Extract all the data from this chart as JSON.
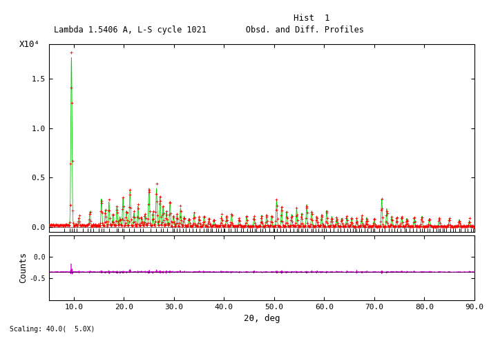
{
  "title_line1": "Hist  1",
  "title_line2": "Lambda 1.5406 A, L-S cycle 1021        Obsd. and Diff. Profiles",
  "xlabel": "2θ, deg",
  "ylabel": "Counts",
  "x_min": 5.0,
  "x_max": 90.0,
  "y_main_min": -0.05,
  "y_main_max": 1.85,
  "y_diff_min": -1.0,
  "y_diff_max": 0.5,
  "scale_label": "Scaling: 40.0(  5.0X)",
  "x10_label": "X10⁴",
  "obs_color": "#ff0000",
  "calc_color": "#00cc00",
  "diff_color": "#cc00cc",
  "tick_color": "#000000",
  "bg_color": "#ffffff"
}
